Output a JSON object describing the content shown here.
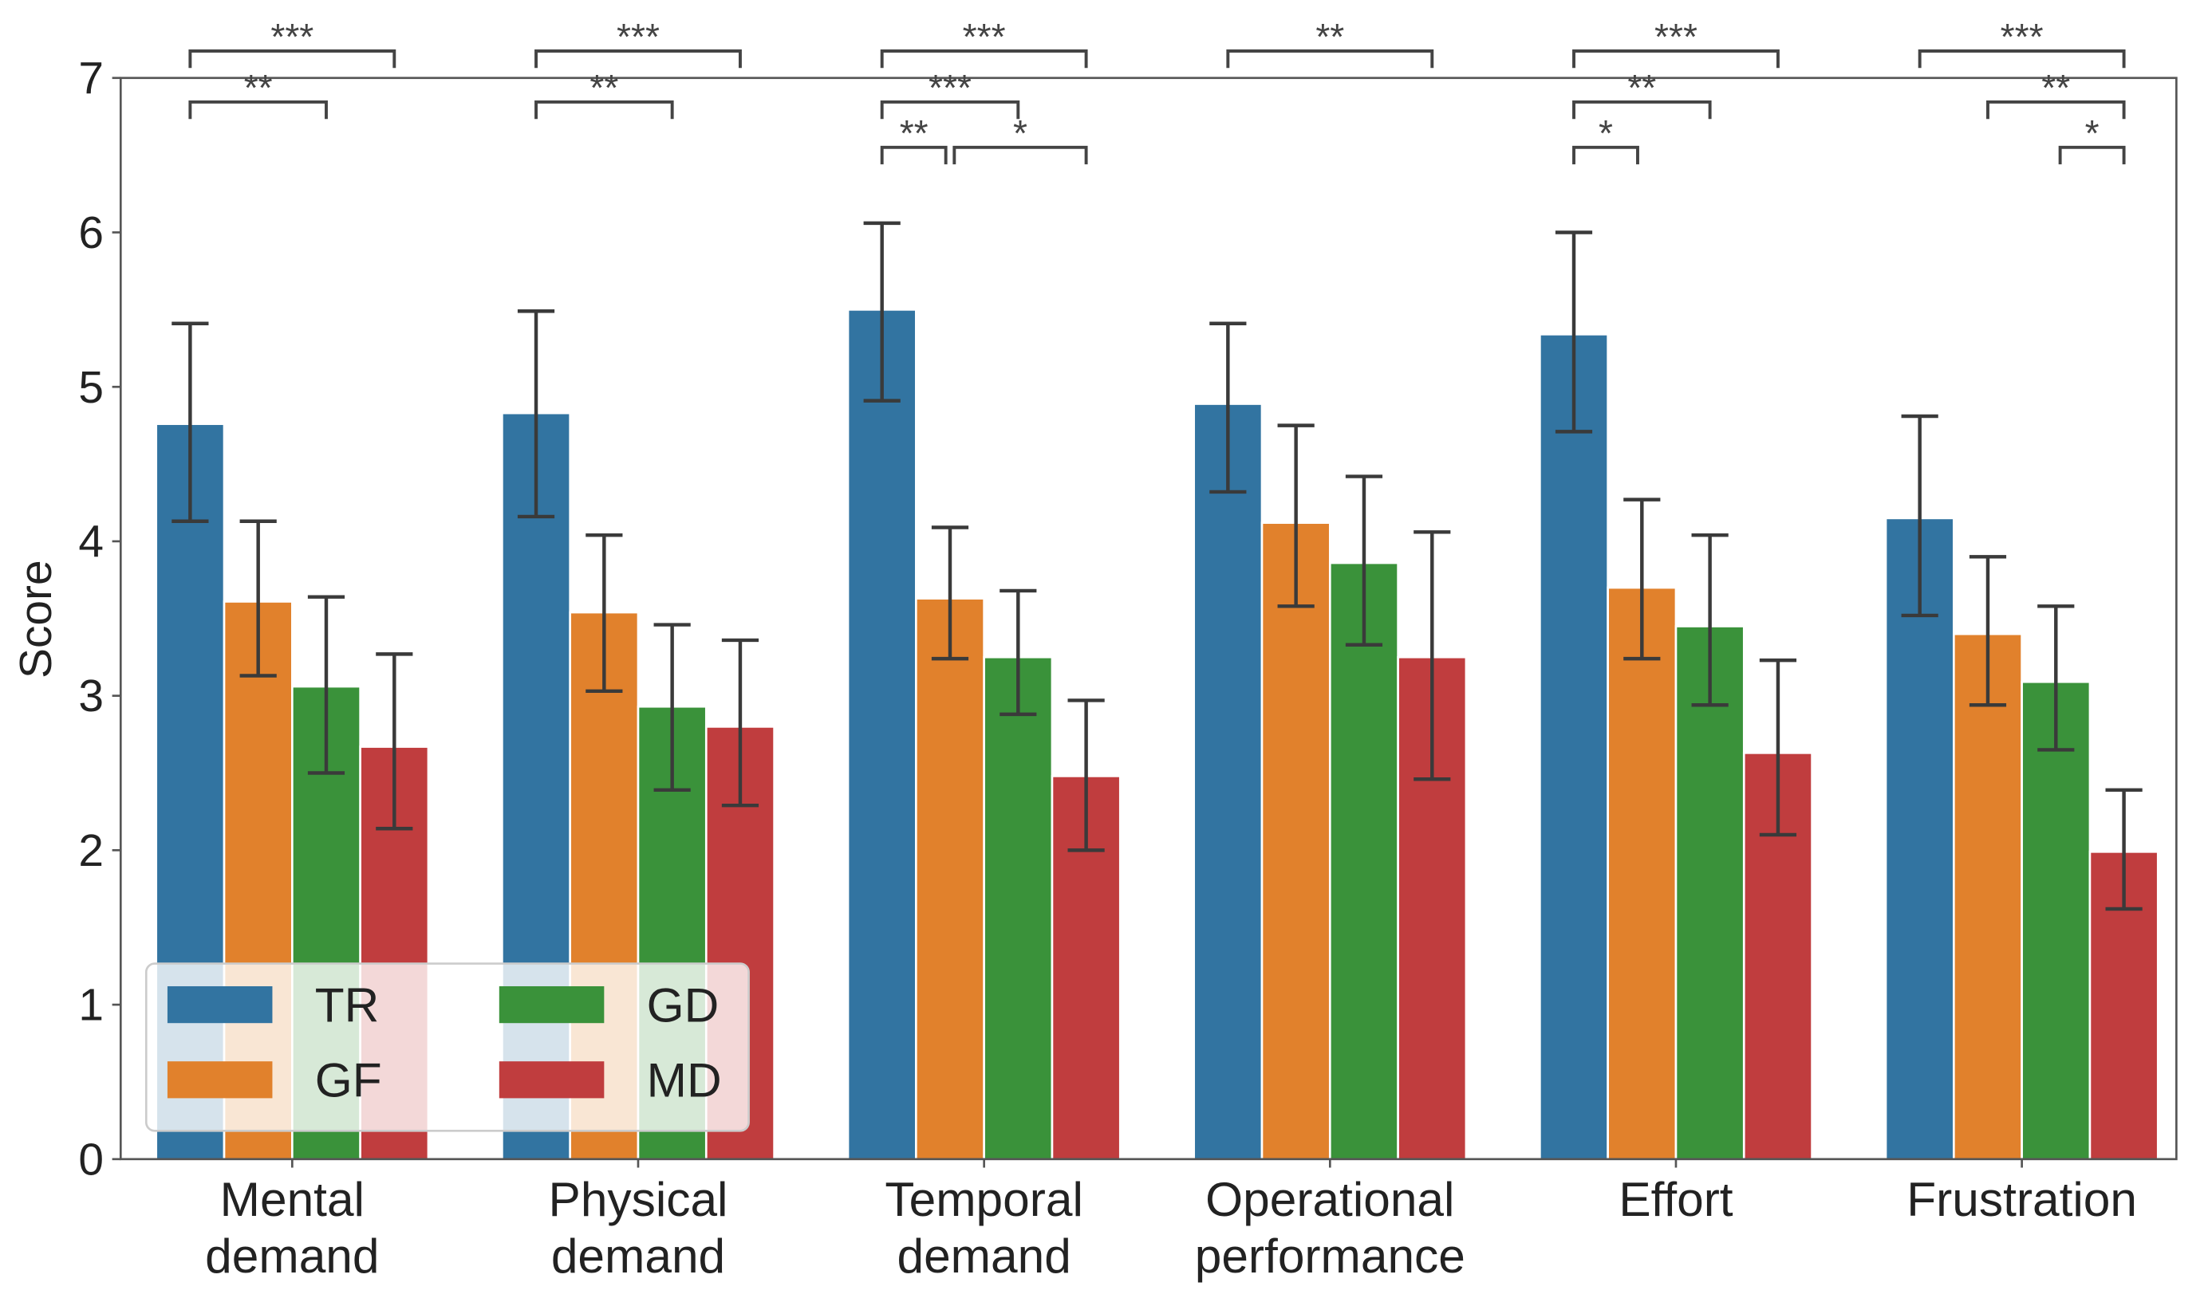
{
  "chart_data": {
    "type": "bar",
    "title": "",
    "xlabel": "",
    "ylabel": "Score",
    "ylim": [
      0,
      7
    ],
    "yticks": [
      "0",
      "1",
      "2",
      "3",
      "4",
      "5",
      "6",
      "7"
    ],
    "grid": false,
    "legend_position": "bottom-left",
    "categories": [
      [
        "Mental",
        "demand"
      ],
      [
        "Physical",
        "demand"
      ],
      [
        "Temporal",
        "demand"
      ],
      [
        "Operational",
        "performance"
      ],
      [
        "Effort"
      ],
      [
        "Frustration"
      ]
    ],
    "series": [
      {
        "name": "TR",
        "color": "#3274a1",
        "values": [
          4.76,
          4.83,
          5.5,
          4.89,
          5.34,
          4.15
        ],
        "err_low": [
          4.13,
          4.16,
          4.91,
          4.32,
          4.71,
          3.52
        ],
        "err_high": [
          5.41,
          5.49,
          6.06,
          5.41,
          6.0,
          4.81
        ]
      },
      {
        "name": "GF",
        "color": "#e1812c",
        "values": [
          3.61,
          3.54,
          3.63,
          4.12,
          3.7,
          3.4
        ],
        "err_low": [
          3.13,
          3.03,
          3.24,
          3.58,
          3.24,
          2.94
        ],
        "err_high": [
          4.13,
          4.04,
          4.09,
          4.75,
          4.27,
          3.9
        ]
      },
      {
        "name": "GD",
        "color": "#3a923a",
        "values": [
          3.06,
          2.93,
          3.25,
          3.86,
          3.45,
          3.09
        ],
        "err_low": [
          2.5,
          2.39,
          2.88,
          3.33,
          2.94,
          2.65
        ],
        "err_high": [
          3.64,
          3.46,
          3.68,
          4.42,
          4.04,
          3.58
        ]
      },
      {
        "name": "MD",
        "color": "#c03d3e",
        "values": [
          2.67,
          2.8,
          2.48,
          3.25,
          2.63,
          1.99
        ],
        "err_low": [
          2.14,
          2.29,
          2.0,
          2.46,
          2.1,
          1.62
        ],
        "err_high": [
          3.27,
          3.36,
          2.97,
          4.06,
          3.23,
          2.39
        ]
      }
    ],
    "significance": [
      {
        "category": 0,
        "from": "TR",
        "to": "MD",
        "label": "***",
        "level": 0
      },
      {
        "category": 0,
        "from": "TR",
        "to": "GD",
        "label": "**",
        "level": 1
      },
      {
        "category": 1,
        "from": "TR",
        "to": "MD",
        "label": "***",
        "level": 0
      },
      {
        "category": 1,
        "from": "TR",
        "to": "GD",
        "label": "**",
        "level": 1
      },
      {
        "category": 2,
        "from": "TR",
        "to": "MD",
        "label": "***",
        "level": 0
      },
      {
        "category": 2,
        "from": "TR",
        "to": "GD",
        "label": "***",
        "level": 1
      },
      {
        "category": 2,
        "from": "TR",
        "to": "GF",
        "label": "**",
        "level": 2
      },
      {
        "category": 2,
        "from": "GF",
        "to": "MD",
        "label": "*",
        "level": 2
      },
      {
        "category": 3,
        "from": "TR",
        "to": "MD",
        "label": "**",
        "level": 0
      },
      {
        "category": 4,
        "from": "TR",
        "to": "MD",
        "label": "***",
        "level": 0
      },
      {
        "category": 4,
        "from": "TR",
        "to": "GD",
        "label": "**",
        "level": 1
      },
      {
        "category": 4,
        "from": "TR",
        "to": "GF",
        "label": "*",
        "level": 2
      },
      {
        "category": 5,
        "from": "TR",
        "to": "MD",
        "label": "***",
        "level": 0
      },
      {
        "category": 5,
        "from": "GF",
        "to": "MD",
        "label": "**",
        "level": 1
      },
      {
        "category": 5,
        "from": "GD",
        "to": "MD",
        "label": "*",
        "level": 2
      }
    ]
  }
}
